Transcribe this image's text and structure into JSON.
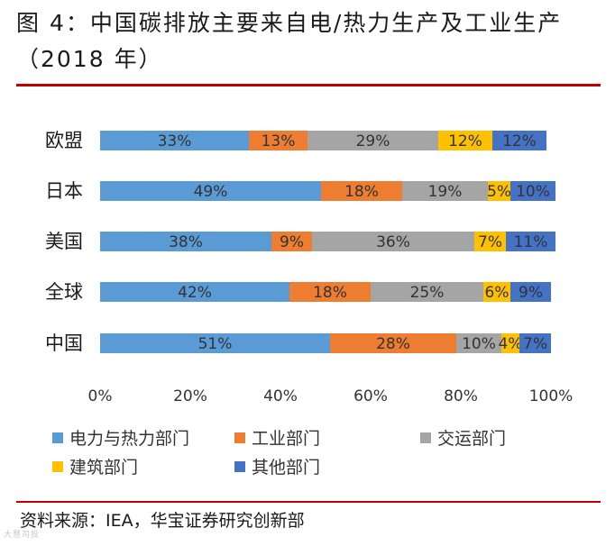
{
  "title_line1": "图 4：中国碳排放主要来自电/热力生产及工业生产",
  "title_line2": "（2018 年）",
  "source": "资料来源：IEA，华宝证券研究创新部",
  "watermark": "大慧司投",
  "chart_data": {
    "type": "bar",
    "orientation": "horizontal",
    "stacked": true,
    "percent": true,
    "title": "图 4：中国碳排放主要来自电/热力生产及工业生产（2018 年）",
    "categories": [
      "欧盟",
      "日本",
      "美国",
      "全球",
      "中国"
    ],
    "series": [
      {
        "name": "电力与热力部门",
        "color": "#5b9bd5",
        "values": [
          33,
          49,
          38,
          42,
          51
        ],
        "labels": [
          "33%",
          "49%",
          "38%",
          "42%",
          "51%"
        ]
      },
      {
        "name": "工业部门",
        "color": "#ed7d31",
        "values": [
          13,
          18,
          9,
          18,
          28
        ],
        "labels": [
          "13%",
          "18%",
          "9%",
          "18%",
          "28%"
        ]
      },
      {
        "name": "交运部门",
        "color": "#a5a5a5",
        "values": [
          29,
          19,
          36,
          25,
          10
        ],
        "labels": [
          "29%",
          "19%",
          "36%",
          "25%",
          "10%"
        ]
      },
      {
        "name": "建筑部门",
        "color": "#ffc000",
        "values": [
          12,
          5,
          7,
          6,
          4
        ],
        "labels": [
          "12%",
          "5%",
          "7%",
          "6%",
          "4%"
        ]
      },
      {
        "name": "其他部门",
        "color": "#4472c4",
        "values": [
          12,
          10,
          11,
          9,
          7
        ],
        "labels": [
          "12%",
          "10%",
          "11%",
          "9%",
          "7%"
        ]
      }
    ],
    "xlim": [
      0,
      100
    ],
    "xticks": [
      "0%",
      "20%",
      "40%",
      "60%",
      "80%",
      "100%"
    ],
    "gridlines": false,
    "legend_position": "bottom"
  }
}
